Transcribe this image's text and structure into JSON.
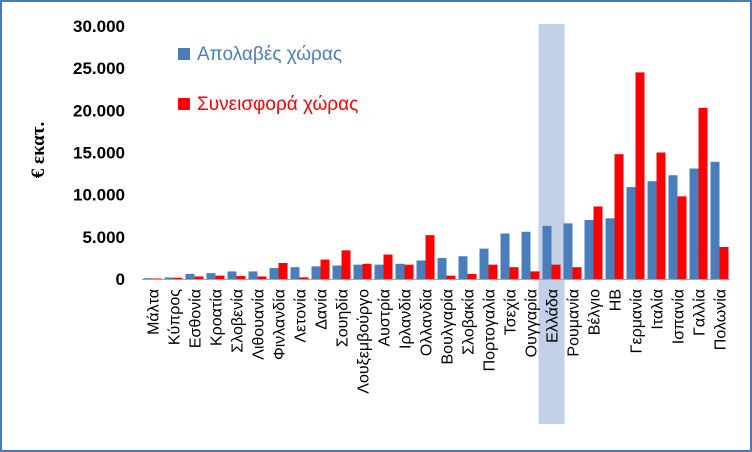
{
  "chart_data": {
    "type": "bar",
    "ylabel": "€ εκατ.",
    "ylim": [
      0,
      30000
    ],
    "yticks": [
      0,
      5000,
      10000,
      15000,
      20000,
      25000,
      30000
    ],
    "ytick_labels": [
      "0",
      "5.000",
      "10.000",
      "15.000",
      "20.000",
      "25.000",
      "30.000"
    ],
    "grid": false,
    "legend_position": "top-left",
    "highlight_category": "Ελλάδα",
    "highlight_color": "#b7c9e4",
    "categories": [
      "Μάλτα",
      "Κύπρος",
      "Εσθονία",
      "Κροατία",
      "Σλοβενία",
      "Λιθουανία",
      "Φινλανδία",
      "Λετονία",
      "Δανία",
      "Σουηδία",
      "Λουξεμβούργο",
      "Αυστρία",
      "Ιρλανδία",
      "Ολλανδία",
      "Βουλγαρία",
      "Σλοβακία",
      "Πορτογαλία",
      "Τσεχία",
      "Ουγγαρία",
      "Ελλάδα",
      "Ρουμανία",
      "Βέλγιο",
      "ΗΒ",
      "Γερμανία",
      "Ιταλία",
      "Ισπανία",
      "Γαλλία",
      "Πολωνία"
    ],
    "series": [
      {
        "name": "Απολαβές χώρας",
        "color": "#4a7ebb",
        "values": [
          100,
          180,
          600,
          700,
          900,
          900,
          1300,
          1400,
          1500,
          1600,
          1700,
          1700,
          1800,
          2200,
          2500,
          2700,
          3600,
          5400,
          5600,
          6300,
          6600,
          7000,
          7200,
          10900,
          11600,
          12300,
          13100,
          13900
        ]
      },
      {
        "name": "Συνεισφορά χώρας",
        "color": "#ff0000",
        "values": [
          60,
          150,
          300,
          400,
          350,
          300,
          1900,
          200,
          2300,
          3400,
          1800,
          2900,
          1700,
          5200,
          400,
          600,
          1700,
          1400,
          900,
          1700,
          1400,
          8600,
          14800,
          24500,
          15000,
          9800,
          20300,
          3800
        ]
      }
    ]
  }
}
